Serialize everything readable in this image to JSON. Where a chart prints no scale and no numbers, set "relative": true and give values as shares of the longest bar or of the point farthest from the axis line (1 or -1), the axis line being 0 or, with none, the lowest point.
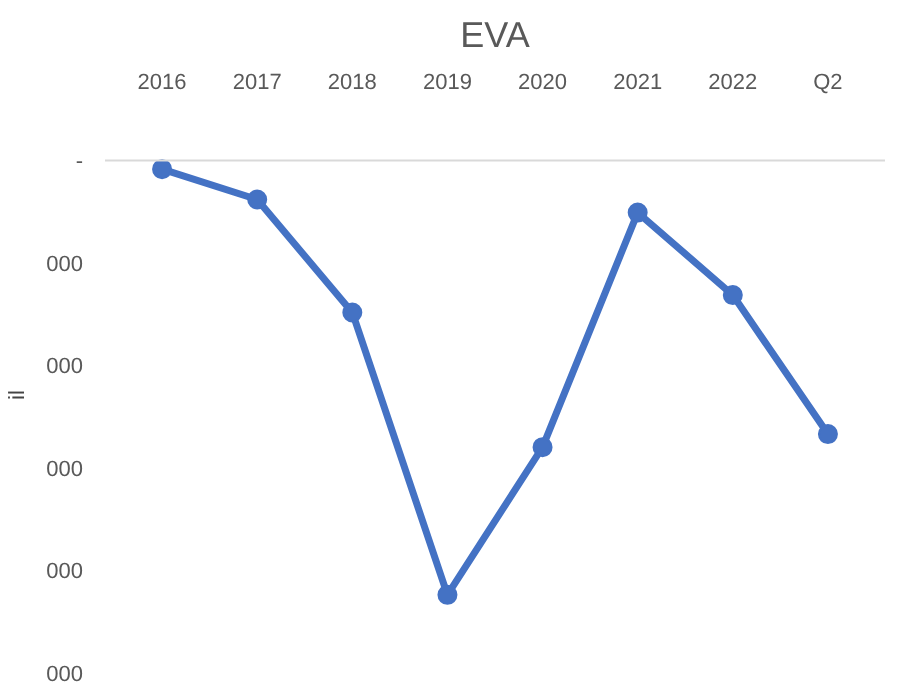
{
  "chart_data": {
    "type": "line",
    "title": "EVA",
    "ylabel": "il",
    "relative": true,
    "categories": [
      "2016",
      "2017",
      "2018",
      "2019",
      "2020",
      "2021",
      "2022",
      "Q2"
    ],
    "series": [
      {
        "color": "#4472c4",
        "values": [
          -0.02,
          -0.09,
          -0.35,
          -1,
          -0.66,
          -0.12,
          -0.31,
          -0.63
        ]
      }
    ],
    "marker": "circle",
    "line_style": "solid",
    "annotations": [
      "-",
      "000",
      "000",
      "000",
      "000",
      "000"
    ]
  }
}
